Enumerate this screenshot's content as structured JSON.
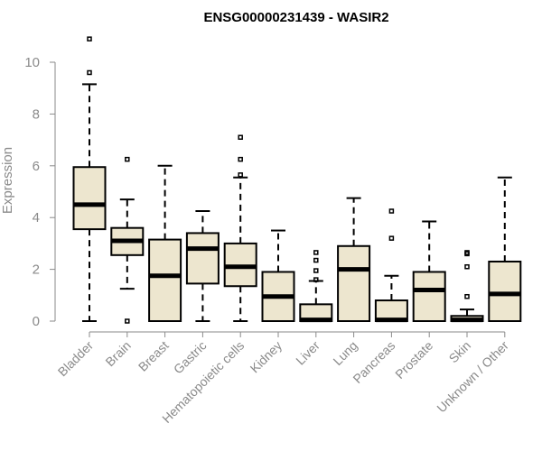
{
  "chart_data": {
    "type": "box",
    "title": "ENSG00000231439 - WASIR2",
    "xlabel": "",
    "ylabel": "Expression",
    "ylim": [
      0,
      10.5
    ],
    "yticks": [
      0,
      2,
      4,
      6,
      8,
      10
    ],
    "categories": [
      "Bladder",
      "Brain",
      "Breast",
      "Gastric",
      "Hematopoietic cells",
      "Kidney",
      "Liver",
      "Lung",
      "Pancreas",
      "Prostate",
      "Skin",
      "Unknown / Other"
    ],
    "boxes": [
      {
        "min": 0.0,
        "q1": 3.55,
        "median": 4.5,
        "q3": 5.95,
        "max": 9.15,
        "outliers": [
          9.6,
          10.9
        ]
      },
      {
        "min": 1.25,
        "q1": 2.55,
        "median": 3.1,
        "q3": 3.6,
        "max": 4.7,
        "outliers": [
          0.0,
          6.25
        ]
      },
      {
        "min": 0.0,
        "q1": 0.0,
        "median": 1.75,
        "q3": 3.15,
        "max": 6.0,
        "outliers": []
      },
      {
        "min": 0.0,
        "q1": 1.45,
        "median": 2.8,
        "q3": 3.4,
        "max": 4.25,
        "outliers": []
      },
      {
        "min": 0.0,
        "q1": 1.35,
        "median": 2.1,
        "q3": 3.0,
        "max": 5.55,
        "outliers": [
          5.65,
          6.25,
          7.1
        ]
      },
      {
        "min": 0.0,
        "q1": 0.0,
        "median": 0.95,
        "q3": 1.9,
        "max": 3.5,
        "outliers": []
      },
      {
        "min": 0.0,
        "q1": 0.0,
        "median": 0.05,
        "q3": 0.65,
        "max": 1.55,
        "outliers": [
          1.6,
          1.95,
          2.35,
          2.65
        ]
      },
      {
        "min": 0.0,
        "q1": 0.0,
        "median": 2.0,
        "q3": 2.9,
        "max": 4.75,
        "outliers": []
      },
      {
        "min": 0.0,
        "q1": 0.0,
        "median": 0.05,
        "q3": 0.8,
        "max": 1.75,
        "outliers": [
          3.2,
          4.25
        ]
      },
      {
        "min": 0.0,
        "q1": 0.0,
        "median": 1.2,
        "q3": 1.9,
        "max": 3.85,
        "outliers": []
      },
      {
        "min": 0.0,
        "q1": 0.0,
        "median": 0.05,
        "q3": 0.2,
        "max": 0.45,
        "outliers": [
          0.95,
          2.1,
          2.6,
          2.65
        ]
      },
      {
        "min": 0.0,
        "q1": 0.0,
        "median": 1.05,
        "q3": 2.3,
        "max": 5.55,
        "outliers": []
      }
    ],
    "grid": false,
    "legend": "none",
    "colors": {
      "box_fill": "#ede6cf",
      "box_stroke": "#000000",
      "axis": "#8a8a8a"
    }
  }
}
